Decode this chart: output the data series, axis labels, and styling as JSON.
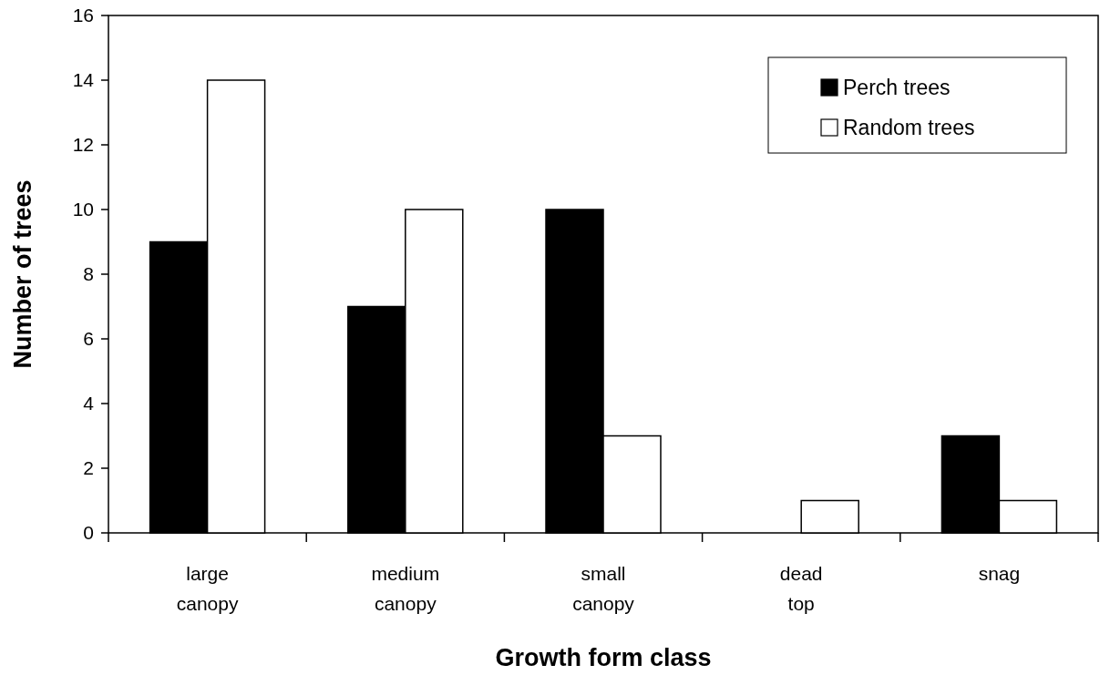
{
  "chart_data": {
    "type": "bar",
    "xlabel": "Growth form class",
    "ylabel": "Number of trees",
    "categories": [
      "large canopy",
      "medium canopy",
      "small canopy",
      "dead top",
      "snag"
    ],
    "series": [
      {
        "name": "Perch trees",
        "color": "#000000",
        "values": [
          9,
          7,
          10,
          0,
          3
        ]
      },
      {
        "name": "Random trees",
        "color": "#ffffff",
        "values": [
          14,
          10,
          3,
          1,
          1
        ]
      }
    ],
    "ylim": [
      0,
      16
    ],
    "yticks": [
      0,
      2,
      4,
      6,
      8,
      10,
      12,
      14,
      16
    ],
    "legend": "top right"
  }
}
